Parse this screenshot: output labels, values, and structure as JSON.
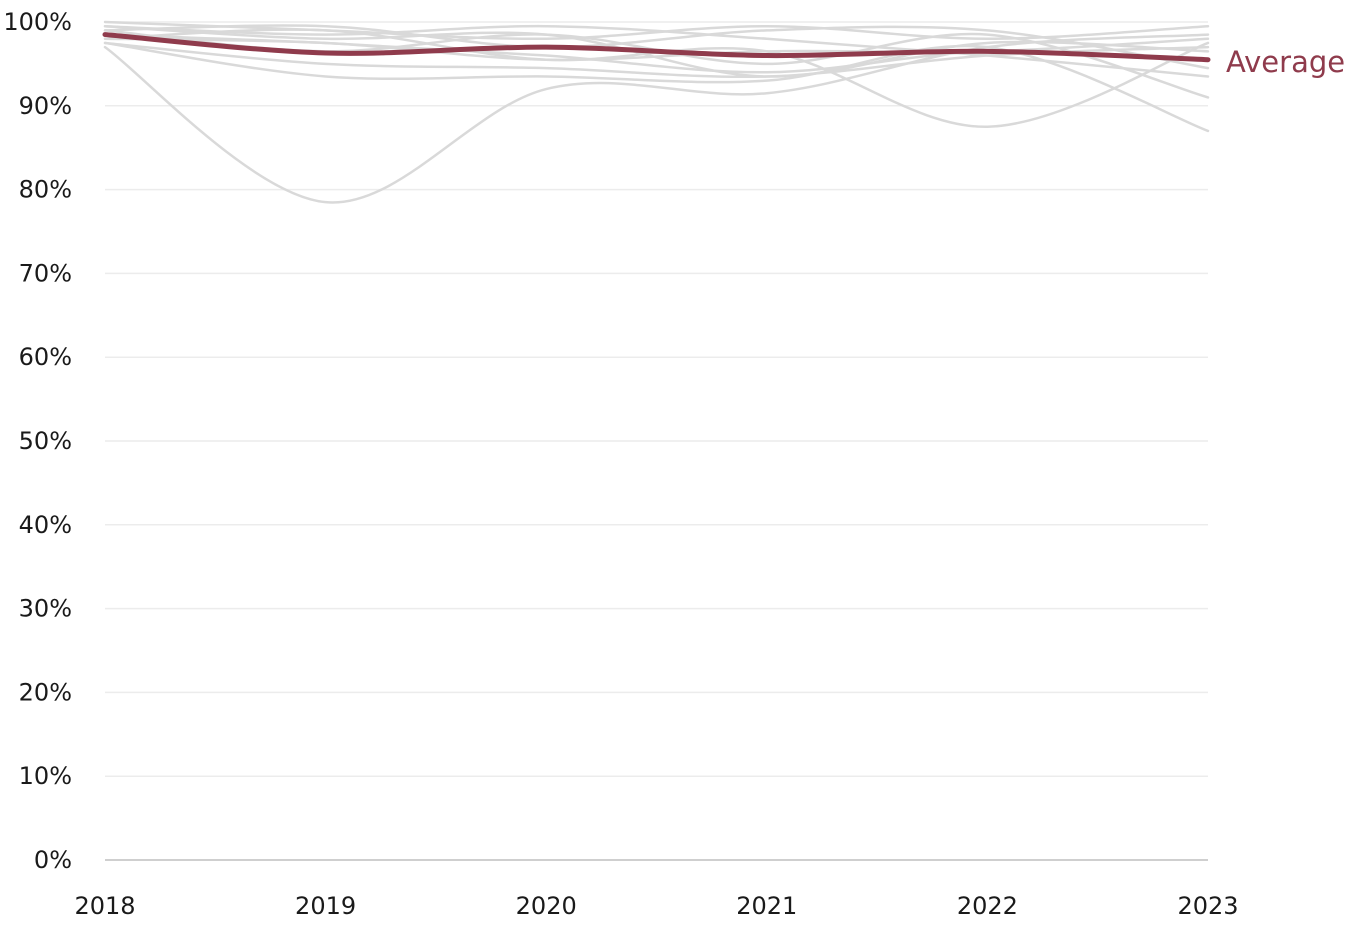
{
  "chart_data": {
    "type": "line",
    "x": [
      "2018",
      "2019",
      "2020",
      "2021",
      "2022",
      "2023"
    ],
    "ylim": [
      0,
      100
    ],
    "y_ticks": [
      {
        "value": 0,
        "label": "0%"
      },
      {
        "value": 10,
        "label": "10%"
      },
      {
        "value": 20,
        "label": "20%"
      },
      {
        "value": 30,
        "label": "30%"
      },
      {
        "value": 40,
        "label": "40%"
      },
      {
        "value": 50,
        "label": "50%"
      },
      {
        "value": 60,
        "label": "60%"
      },
      {
        "value": 70,
        "label": "70%"
      },
      {
        "value": 80,
        "label": "80%"
      },
      {
        "value": 90,
        "label": "90%"
      },
      {
        "value": 100,
        "label": "100%"
      }
    ],
    "grid": true,
    "background_series": [
      {
        "values": [
          97.0,
          78.5,
          92.0,
          91.5,
          97.0,
          98.5
        ]
      },
      {
        "values": [
          98.0,
          99.0,
          95.5,
          96.5,
          87.5,
          97.5
        ]
      },
      {
        "values": [
          97.5,
          93.5,
          93.5,
          93.0,
          97.0,
          87.0
        ]
      },
      {
        "values": [
          99.0,
          96.5,
          98.5,
          95.0,
          98.5,
          91.0
        ]
      },
      {
        "values": [
          99.5,
          98.5,
          99.5,
          98.0,
          96.0,
          93.5
        ]
      },
      {
        "values": [
          98.5,
          97.5,
          96.0,
          94.0,
          96.5,
          95.5
        ]
      },
      {
        "values": [
          99.0,
          99.5,
          97.0,
          99.0,
          99.0,
          94.5
        ]
      },
      {
        "values": [
          99.5,
          98.0,
          98.5,
          93.5,
          97.5,
          96.5
        ]
      },
      {
        "values": [
          100.0,
          99.0,
          98.0,
          99.5,
          98.0,
          99.5
        ]
      },
      {
        "values": [
          97.5,
          95.0,
          94.5,
          93.5,
          96.0,
          97.0
        ]
      },
      {
        "values": [
          98.0,
          97.5,
          95.5,
          96.5,
          96.5,
          98.0
        ]
      }
    ],
    "series": [
      {
        "name": "Average",
        "values": [
          98.5,
          96.3,
          97.0,
          96.0,
          96.5,
          95.5
        ]
      }
    ],
    "colors": {
      "background_series": "#d9d9d9",
      "average": "#8f3b4c",
      "grid": "#ececec",
      "axis": "#cfcfcf"
    }
  }
}
